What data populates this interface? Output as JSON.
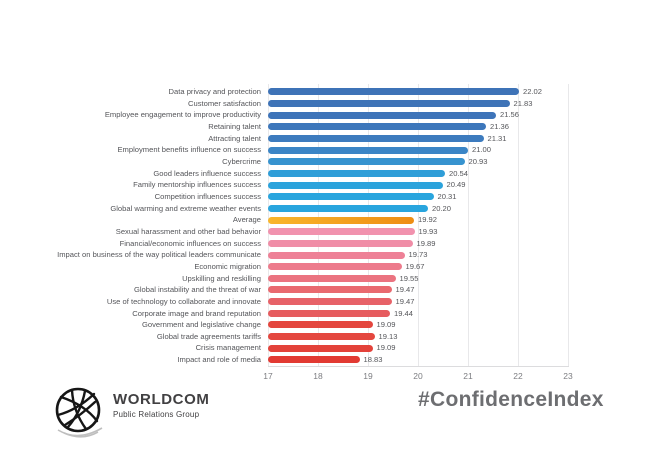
{
  "chart_data": {
    "type": "bar",
    "orientation": "horizontal",
    "title": "",
    "xlabel": "",
    "ylabel": "",
    "xlim": [
      17,
      23
    ],
    "xticks": [
      "17",
      "18",
      "19",
      "20",
      "21",
      "22",
      "23"
    ],
    "grid": "vertical",
    "legend": "none",
    "points": [
      {
        "label": "Data privacy and protection",
        "value": 22.02,
        "display": "22.02",
        "color": "#3e73b7"
      },
      {
        "label": "Customer satisfaction",
        "value": 21.83,
        "display": "21.83",
        "color": "#3e73b7"
      },
      {
        "label": "Employee engagement to improve productivity",
        "value": 21.56,
        "display": "21.56",
        "color": "#3e74b9"
      },
      {
        "label": "Retaining talent",
        "value": 21.36,
        "display": "21.36",
        "color": "#3d77bb"
      },
      {
        "label": "Attracting talent",
        "value": 21.31,
        "display": "21.31",
        "color": "#3d7bbe"
      },
      {
        "label": "Employment benefits influence on success",
        "value": 21.0,
        "display": "21.00",
        "color": "#3b85c6"
      },
      {
        "label": "Cybercrime",
        "value": 20.93,
        "display": "20.93",
        "color": "#3793cf"
      },
      {
        "label": "Good leaders influence success",
        "value": 20.54,
        "display": "20.54",
        "color": "#2f9ed8"
      },
      {
        "label": "Family mentorship influences success",
        "value": 20.49,
        "display": "20.49",
        "color": "#2ba3dc"
      },
      {
        "label": "Competition influences success",
        "value": 20.31,
        "display": "20.31",
        "color": "#29a5de"
      },
      {
        "label": "Global warming and extreme weather events",
        "value": 20.2,
        "display": "20.20",
        "color": "#29a5de"
      },
      {
        "label": "Average",
        "value": 19.92,
        "display": "19.92",
        "color": "#f9b62c",
        "color2": "#ee8d14"
      },
      {
        "label": "Sexual harassment and other bad behavior",
        "value": 19.93,
        "display": "19.93",
        "color": "#f192ae"
      },
      {
        "label": "Financial/economic influences on success",
        "value": 19.89,
        "display": "19.89",
        "color": "#f08da7"
      },
      {
        "label": "Impact on business of the way political leaders communicate",
        "value": 19.73,
        "display": "19.73",
        "color": "#ee8197"
      },
      {
        "label": "Economic migration",
        "value": 19.67,
        "display": "19.67",
        "color": "#ed7b8c"
      },
      {
        "label": "Upskilling and reskilling",
        "value": 19.55,
        "display": "19.55",
        "color": "#eb7380"
      },
      {
        "label": "Global instability and the threat of war",
        "value": 19.47,
        "display": "19.47",
        "color": "#e9696f"
      },
      {
        "label": "Use of technology to collaborate and innovate",
        "value": 19.47,
        "display": "19.47",
        "color": "#e76268"
      },
      {
        "label": "Corporate image and brand reputation",
        "value": 19.44,
        "display": "19.44",
        "color": "#e65b5e"
      },
      {
        "label": "Government and legislative change",
        "value": 19.09,
        "display": "19.09",
        "color": "#e4463e"
      },
      {
        "label": "Global trade agreements tariffs",
        "value": 19.13,
        "display": "19.13",
        "color": "#e4473f"
      },
      {
        "label": "Crisis management",
        "value": 19.09,
        "display": "19.09",
        "color": "#e3423a"
      },
      {
        "label": "Impact and role of media",
        "value": 18.83,
        "display": "18.83",
        "color": "#e23a33"
      }
    ]
  },
  "footer": {
    "logo_name": "WORLDCOM",
    "logo_subtitle": "Public Relations Group",
    "hashtag": "#ConfidenceIndex"
  },
  "colors": {
    "gridline": "#e8e8ea",
    "label_text": "#55565a",
    "tick_text": "#7c7d81",
    "hashtag_text": "#6d6e71"
  }
}
